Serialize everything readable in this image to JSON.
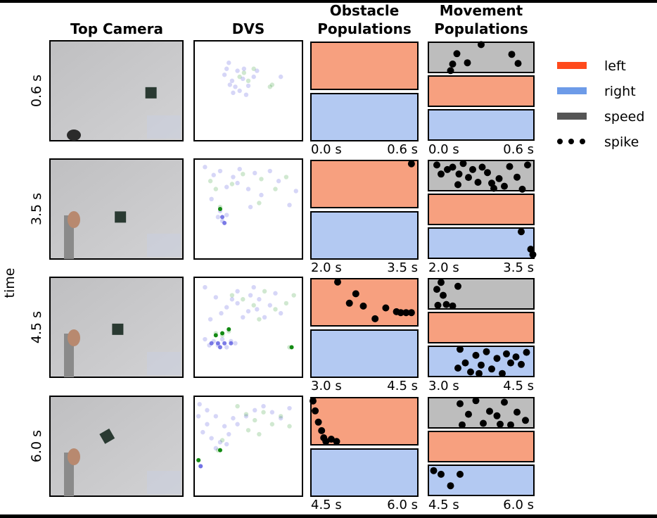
{
  "headers": {
    "top_camera": "Top Camera",
    "dvs": "DVS",
    "obstacle_line1": "Obstacle",
    "obstacle_line2": "Populations",
    "movement_line1": "Movement",
    "movement_line2": "Populations"
  },
  "y_axis_label": "time",
  "rows": [
    {
      "time_label": "0.6 s",
      "window_start": "0.0 s",
      "window_end": "0.6 s"
    },
    {
      "time_label": "3.5 s",
      "window_start": "2.0 s",
      "window_end": "3.5 s"
    },
    {
      "time_label": "4.5 s",
      "window_start": "3.0 s",
      "window_end": "4.5 s"
    },
    {
      "time_label": "6.0 s",
      "window_start": "4.5 s",
      "window_end": "6.0 s"
    }
  ],
  "legend": [
    {
      "label": "left",
      "color": "#ff4a1c",
      "kind": "line"
    },
    {
      "label": "right",
      "color": "#6d9be8",
      "kind": "line"
    },
    {
      "label": "speed",
      "color": "#555555",
      "kind": "line"
    },
    {
      "label": "spike",
      "color": "#000000",
      "kind": "dots"
    }
  ],
  "colors": {
    "left_fill": "#f7a07f",
    "right_fill": "#b3c9f2",
    "speed_fill": "#bdbdbd",
    "camera_bg": "#c8c8ca",
    "dvs_blue": "#5a5ae0",
    "dvs_green": "#138a13"
  }
}
